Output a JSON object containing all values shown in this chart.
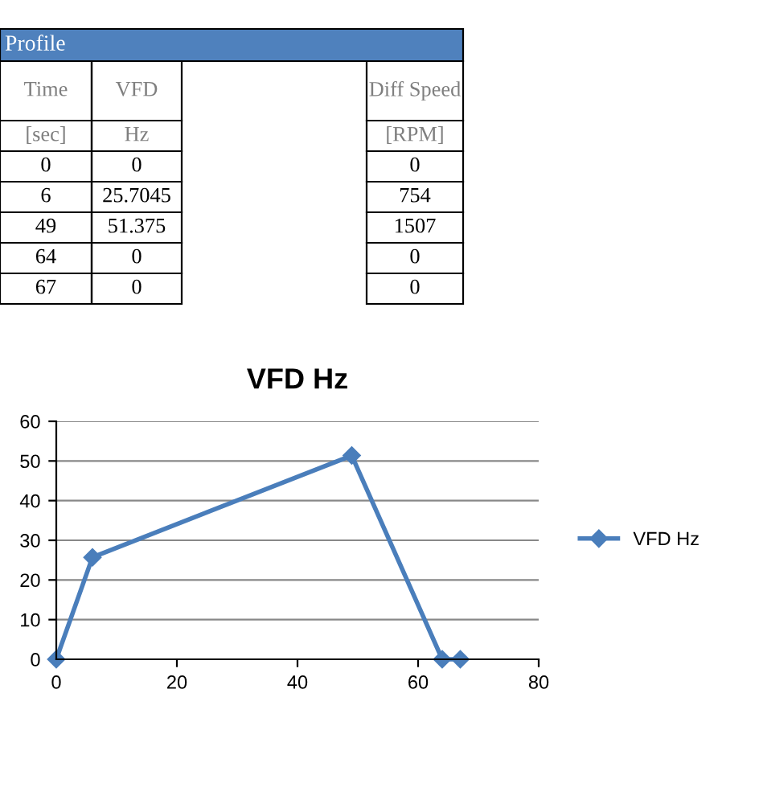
{
  "chart_data": {
    "type": "line",
    "title": "VFD Hz",
    "x": [
      0,
      6,
      49,
      64,
      67
    ],
    "series": [
      {
        "name": "VFD Hz",
        "color": "#4a7ebb",
        "values": [
          0,
          25.7045,
          51.375,
          0,
          0
        ]
      }
    ],
    "xlim": [
      0,
      80
    ],
    "xticks": [
      0,
      20,
      40,
      60,
      80
    ],
    "ylim": [
      0,
      60
    ],
    "yticks": [
      0,
      10,
      20,
      30,
      40,
      50,
      60
    ],
    "grid": "y",
    "legend": "right",
    "marker": "diamond",
    "line_style": "solid",
    "annotations": [
      "Profile",
      "Time",
      "VFD",
      "Diff Speed",
      "[sec]",
      "Hz",
      "[RPM]",
      "0",
      "0",
      "0",
      "6",
      "25.7045",
      "754",
      "49",
      "51.375",
      "1507",
      "64",
      "0",
      "0",
      "67",
      "0",
      "0"
    ]
  }
}
